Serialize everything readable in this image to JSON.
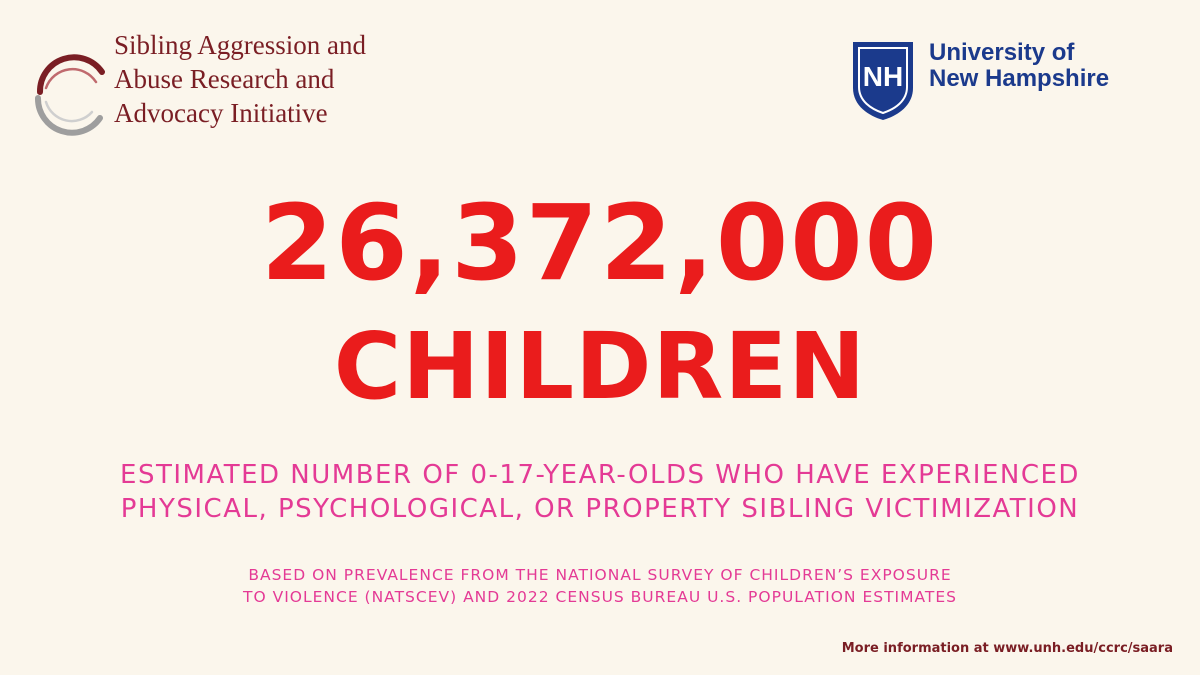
{
  "colors": {
    "background": "#fbf6ec",
    "headline": "#ea1c1c",
    "description": "#e43a95",
    "saara_brand": "#7a1e24",
    "unh_blue": "#1b3a8c"
  },
  "saara_logo": {
    "icon": "circular-ring-logo-icon",
    "lines": [
      "Sibling Aggression and",
      "Abuse Research and",
      "Advocacy Initiative"
    ]
  },
  "unh_logo": {
    "icon": "unh-shield-icon",
    "shield_letters": "NH",
    "lines": [
      "University of",
      "New Hampshire"
    ]
  },
  "headline": {
    "number": "26,372,000",
    "unit": "CHILDREN"
  },
  "description": {
    "lines": [
      "ESTIMATED NUMBER OF 0-17-YEAR-OLDS WHO HAVE EXPERIENCED",
      "PHYSICAL, PSYCHOLOGICAL, OR PROPERTY SIBLING VICTIMIZATION"
    ]
  },
  "source_note": {
    "lines": [
      "BASED ON PREVALENCE FROM THE NATIONAL SURVEY OF CHILDREN’S EXPOSURE",
      "TO VIOLENCE (NATSCEV) AND 2022 CENSUS BUREAU U.S. POPULATION ESTIMATES"
    ]
  },
  "footer": {
    "more_info": "More information at www.unh.edu/ccrc/saara"
  }
}
